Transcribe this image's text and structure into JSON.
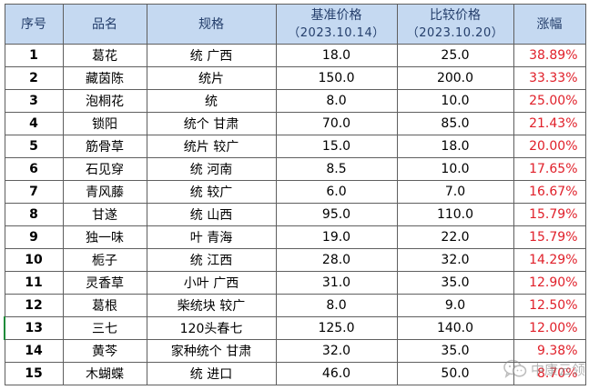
{
  "table": {
    "headers": {
      "no": "序号",
      "name": "品名",
      "spec": "规格",
      "base_price": "基准价格",
      "base_date": "（2023.10.14）",
      "compare_price": "比较价格",
      "compare_date": "（2023.10.20）",
      "change": "涨幅"
    },
    "rows": [
      {
        "no": "1",
        "name": "葛花",
        "spec": "统 广西",
        "base": "18.0",
        "compare": "25.0",
        "change": "38.89%"
      },
      {
        "no": "2",
        "name": "藏茵陈",
        "spec": "统片",
        "base": "150.0",
        "compare": "200.0",
        "change": "33.33%"
      },
      {
        "no": "3",
        "name": "泡桐花",
        "spec": "统",
        "base": "8.0",
        "compare": "10.0",
        "change": "25.00%"
      },
      {
        "no": "4",
        "name": "锁阳",
        "spec": "统个 甘肃",
        "base": "70.0",
        "compare": "85.0",
        "change": "21.43%"
      },
      {
        "no": "5",
        "name": "筋骨草",
        "spec": "统片 较广",
        "base": "15.0",
        "compare": "18.0",
        "change": "20.00%"
      },
      {
        "no": "6",
        "name": "石见穿",
        "spec": "统 河南",
        "base": "8.5",
        "compare": "10.0",
        "change": "17.65%"
      },
      {
        "no": "7",
        "name": "青风藤",
        "spec": "统 较广",
        "base": "6.0",
        "compare": "7.0",
        "change": "16.67%"
      },
      {
        "no": "8",
        "name": "甘遂",
        "spec": "统 山西",
        "base": "95.0",
        "compare": "110.0",
        "change": "15.79%"
      },
      {
        "no": "9",
        "name": "独一味",
        "spec": "叶 青海",
        "base": "19.0",
        "compare": "22.0",
        "change": "15.79%"
      },
      {
        "no": "10",
        "name": "栀子",
        "spec": "统 江西",
        "base": "28.0",
        "compare": "32.0",
        "change": "14.29%"
      },
      {
        "no": "11",
        "name": "灵香草",
        "spec": "小叶 广西",
        "base": "31.0",
        "compare": "35.0",
        "change": "12.90%"
      },
      {
        "no": "12",
        "name": "葛根",
        "spec": "柴统块 较广",
        "base": "8.0",
        "compare": "9.0",
        "change": "12.50%"
      },
      {
        "no": "13",
        "name": "三七",
        "spec": "120头春七",
        "base": "125.0",
        "compare": "140.0",
        "change": "12.00%"
      },
      {
        "no": "14",
        "name": "黄芩",
        "spec": "家种统个 甘肃",
        "base": "32.0",
        "compare": "35.0",
        "change": "9.38%"
      },
      {
        "no": "15",
        "name": "木蝴蝶",
        "spec": "统 进口",
        "base": "46.0",
        "compare": "50.0",
        "change": "8.70%"
      }
    ]
  },
  "watermark": {
    "text": "中康云领",
    "icon": "wechat-icon"
  },
  "colors": {
    "header_bg": "#c5d9f1",
    "header_text": "#243e6b",
    "change_text": "#e0202a",
    "border": "#5f5f5f"
  }
}
